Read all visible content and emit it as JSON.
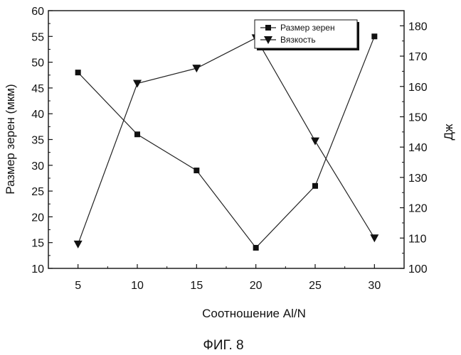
{
  "chart_data": {
    "type": "line",
    "xlabel": "Соотношение Al/N",
    "ylabel_left": "Размер зерен (мкм)",
    "ylabel_right": "Дж",
    "x": [
      5,
      10,
      15,
      20,
      25,
      30
    ],
    "xticks": [
      "5",
      "10",
      "15",
      "20",
      "25",
      "30"
    ],
    "xlim": [
      2.5,
      32.5
    ],
    "ylim_left": [
      10,
      60
    ],
    "yticks_left": [
      "10",
      "15",
      "20",
      "25",
      "30",
      "35",
      "40",
      "45",
      "50",
      "55",
      "60"
    ],
    "ylim_right": [
      100,
      185
    ],
    "yticks_right": [
      "100",
      "110",
      "120",
      "130",
      "140",
      "150",
      "160",
      "170",
      "180"
    ],
    "grid": false,
    "legend_position": "top-right",
    "series": [
      {
        "name": "Размер зерен",
        "axis": "left",
        "marker": "square",
        "values": [
          48,
          36,
          29,
          14,
          26,
          55
        ]
      },
      {
        "name": "Вязкость",
        "axis": "right",
        "marker": "triangle-down",
        "values": [
          108,
          161,
          166,
          176,
          142,
          110
        ]
      }
    ]
  },
  "caption": "ФИГ. 8"
}
